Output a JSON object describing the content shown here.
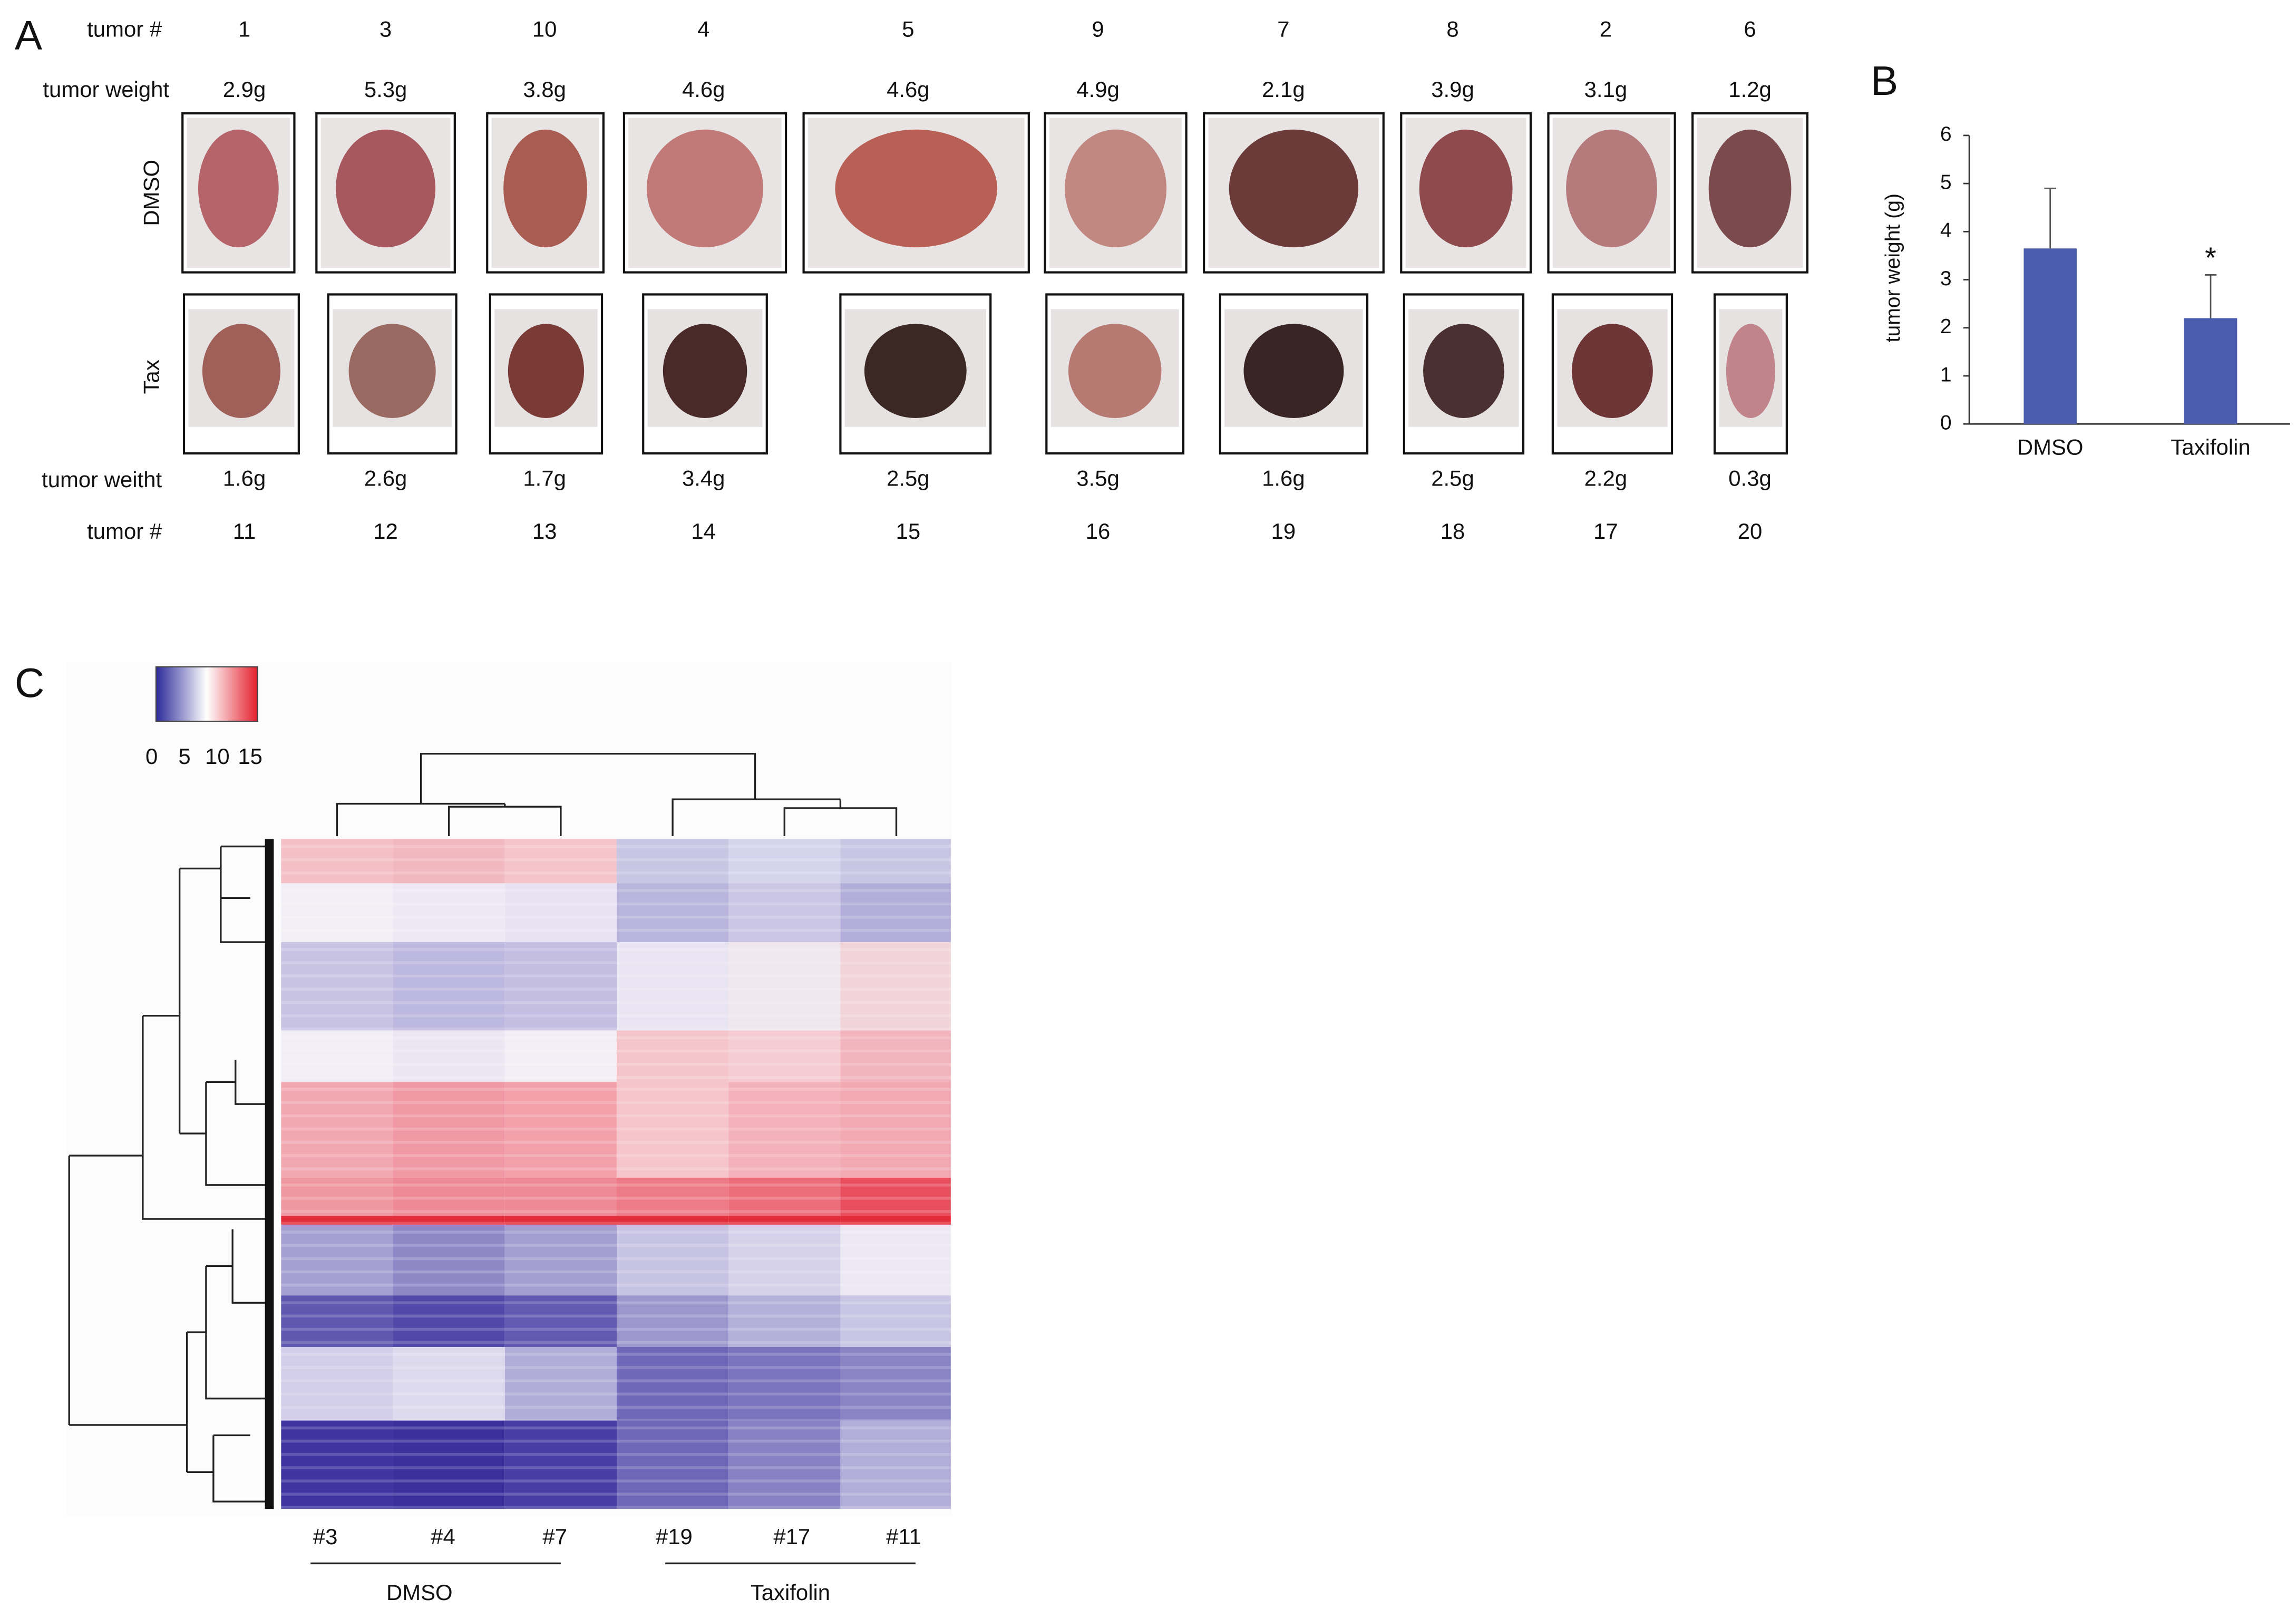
{
  "panel_a": {
    "label": "A",
    "top_number_label": "tumor #",
    "top_weight_label": "tumor weight",
    "dmso_label": "DMSO",
    "tax_label": "Tax",
    "bottom_weight_label": "tumor weitht",
    "bottom_number_label": "tumor #",
    "dmso_tumors": [
      "1",
      "3",
      "10",
      "4",
      "5",
      "9",
      "7",
      "8",
      "2",
      "6"
    ],
    "dmso_weights": [
      "2.9g",
      "5.3g",
      "3.8g",
      "4.6g",
      "4.6g",
      "4.9g",
      "2.1g",
      "3.9g",
      "3.1g",
      "1.2g"
    ],
    "tax_weights": [
      "1.6g",
      "2.6g",
      "1.7g",
      "3.4g",
      "2.5g",
      "3.5g",
      "1.6g",
      "2.5g",
      "2.2g",
      "0.3g"
    ],
    "tax_tumors": [
      "11",
      "12",
      "13",
      "14",
      "15",
      "16",
      "19",
      "18",
      "17",
      "20"
    ]
  },
  "chart_data": {
    "type": "bar",
    "panel_label": "B",
    "ylabel": "tumor weight (g)",
    "categories": [
      "DMSO",
      "Taxifolin"
    ],
    "values": [
      3.65,
      2.2
    ],
    "errors": [
      1.25,
      0.9
    ],
    "annotations": [
      {
        "text": "*",
        "category": "Taxifolin"
      }
    ],
    "color": "#4a5cae",
    "ylim": [
      0,
      6
    ],
    "yticks": [
      0,
      1,
      2,
      3,
      4,
      5,
      6
    ]
  },
  "panel_c": {
    "label": "C",
    "colorbar_lim": [
      0,
      15
    ],
    "colorbar_ticks": [
      0,
      5,
      10,
      15
    ],
    "columns": [
      "#3",
      "#4",
      "#7",
      "#19",
      "#17",
      "#11"
    ],
    "groups": [
      "DMSO",
      "Taxifolin"
    ]
  }
}
